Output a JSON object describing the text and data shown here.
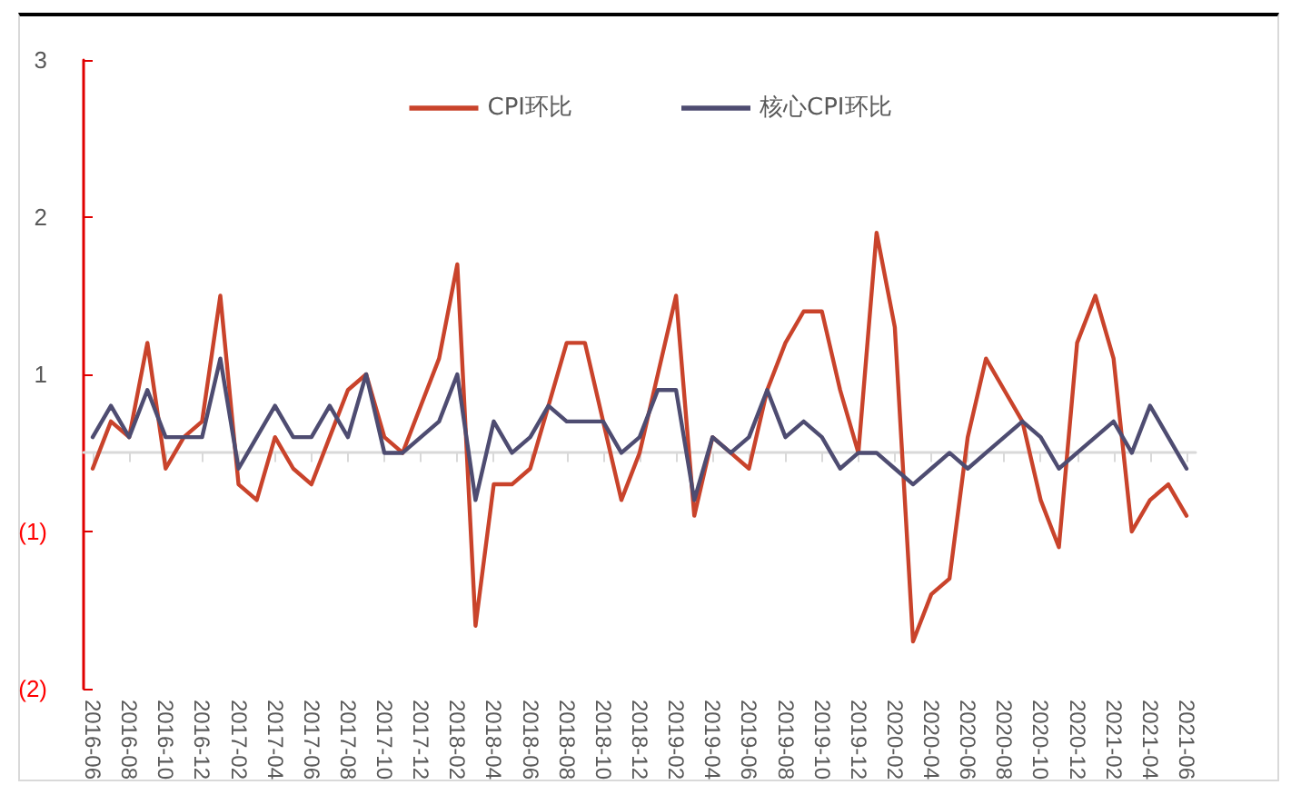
{
  "chart_data": {
    "type": "line",
    "categories": [
      "2016-06",
      null,
      "2016-08",
      null,
      "2016-10",
      null,
      "2016-12",
      null,
      "2017-02",
      null,
      "2017-04",
      null,
      "2017-06",
      null,
      "2017-08",
      null,
      "2017-10",
      null,
      "2017-12",
      null,
      "2018-02",
      null,
      "2018-04",
      null,
      "2018-06",
      null,
      "2018-08",
      null,
      "2018-10",
      null,
      "2018-12",
      null,
      "2019-02",
      null,
      "2019-04",
      null,
      "2019-06",
      null,
      "2019-08",
      null,
      "2019-10",
      null,
      "2019-12",
      null,
      "2020-02",
      null,
      "2020-04",
      null,
      "2020-06",
      null,
      "2020-08",
      null,
      "2020-10",
      null,
      "2020-12",
      null,
      "2021-02",
      null,
      "2021-04",
      null,
      "2021-06"
    ],
    "series": [
      {
        "name": "CPI环比",
        "color": "#c9432b",
        "values": [
          -0.1,
          0.2,
          0.1,
          0.7,
          -0.1,
          0.1,
          0.2,
          1.0,
          -0.2,
          -0.3,
          0.1,
          -0.1,
          -0.2,
          0.1,
          0.4,
          0.5,
          0.1,
          0.0,
          0.3,
          0.6,
          1.2,
          -1.1,
          -0.2,
          -0.2,
          -0.1,
          0.3,
          0.7,
          0.7,
          0.2,
          -0.3,
          0.0,
          0.5,
          1.0,
          -0.4,
          0.1,
          0.0,
          -0.1,
          0.4,
          0.7,
          0.9,
          0.9,
          0.4,
          0.0,
          1.4,
          0.8,
          -1.2,
          -0.9,
          -0.8,
          0.1,
          0.6,
          0.4,
          0.2,
          -0.3,
          -0.6,
          0.7,
          1.0,
          0.6,
          -0.5,
          -0.3,
          -0.2,
          -0.4
        ]
      },
      {
        "name": "核心CPI环比",
        "color": "#4e4c71",
        "values": [
          0.1,
          0.3,
          0.1,
          0.4,
          0.1,
          0.1,
          0.1,
          0.6,
          -0.1,
          0.1,
          0.3,
          0.1,
          0.1,
          0.3,
          0.1,
          0.5,
          0.0,
          0.0,
          0.1,
          0.2,
          0.5,
          -0.3,
          0.2,
          0.0,
          0.1,
          0.3,
          0.2,
          0.2,
          0.2,
          0.0,
          0.1,
          0.4,
          0.4,
          -0.3,
          0.1,
          0.0,
          0.1,
          0.4,
          0.1,
          0.2,
          0.1,
          -0.1,
          0.0,
          0.0,
          -0.1,
          -0.2,
          -0.1,
          0.0,
          -0.1,
          0.0,
          0.1,
          0.2,
          0.1,
          -0.1,
          0.0,
          0.1,
          0.2,
          0.0,
          0.3,
          0.1,
          -0.1
        ]
      }
    ],
    "ylim": [
      -1.5,
      2.5
    ],
    "yticks": [
      {
        "value": 2.5,
        "label": "3"
      },
      {
        "value": 1.5,
        "label": "2"
      },
      {
        "value": 0.5,
        "label": "1"
      },
      {
        "value": -0.5,
        "label": "(1)"
      },
      {
        "value": -1.5,
        "label": "(2)"
      }
    ],
    "grid": false,
    "legend": "top",
    "marker": "none",
    "line_style": "solid"
  }
}
